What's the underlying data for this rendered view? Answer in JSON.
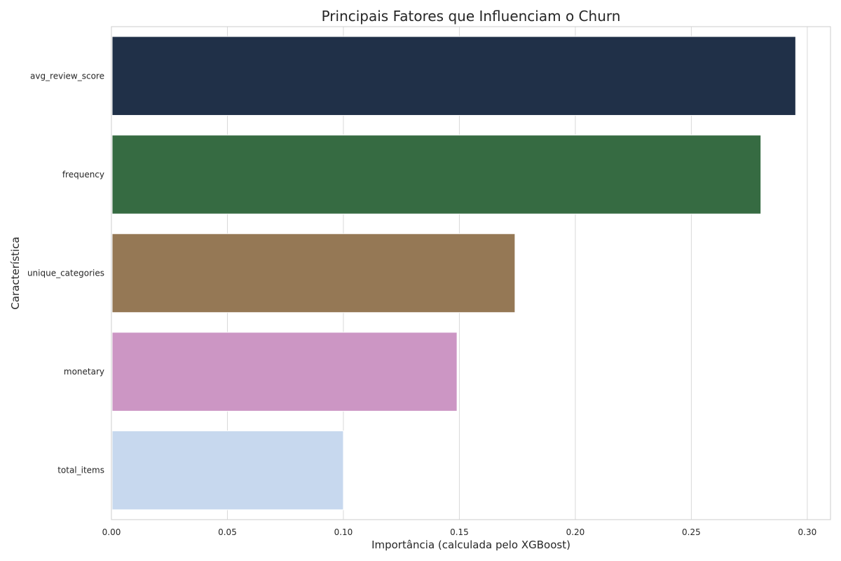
{
  "chart_data": {
    "type": "bar",
    "orientation": "horizontal",
    "title": "Principais Fatores que Influenciam o Churn",
    "xlabel": "Importância (calculada pelo XGBoost)",
    "ylabel": "Característica",
    "categories": [
      "avg_review_score",
      "frequency",
      "unique_categories",
      "monetary",
      "total_items"
    ],
    "values": [
      0.295,
      0.28,
      0.174,
      0.149,
      0.1
    ],
    "colors": [
      "#203048",
      "#366b42",
      "#957855",
      "#cc96c4",
      "#c7d8ee"
    ],
    "xlim": [
      0,
      0.31
    ],
    "xticks": [
      0.0,
      0.05,
      0.1,
      0.15,
      0.2,
      0.25,
      0.3
    ],
    "xtick_labels": [
      "0.00",
      "0.05",
      "0.10",
      "0.15",
      "0.20",
      "0.25",
      "0.30"
    ],
    "grid": true,
    "grid_axis": "x",
    "legend": false
  }
}
